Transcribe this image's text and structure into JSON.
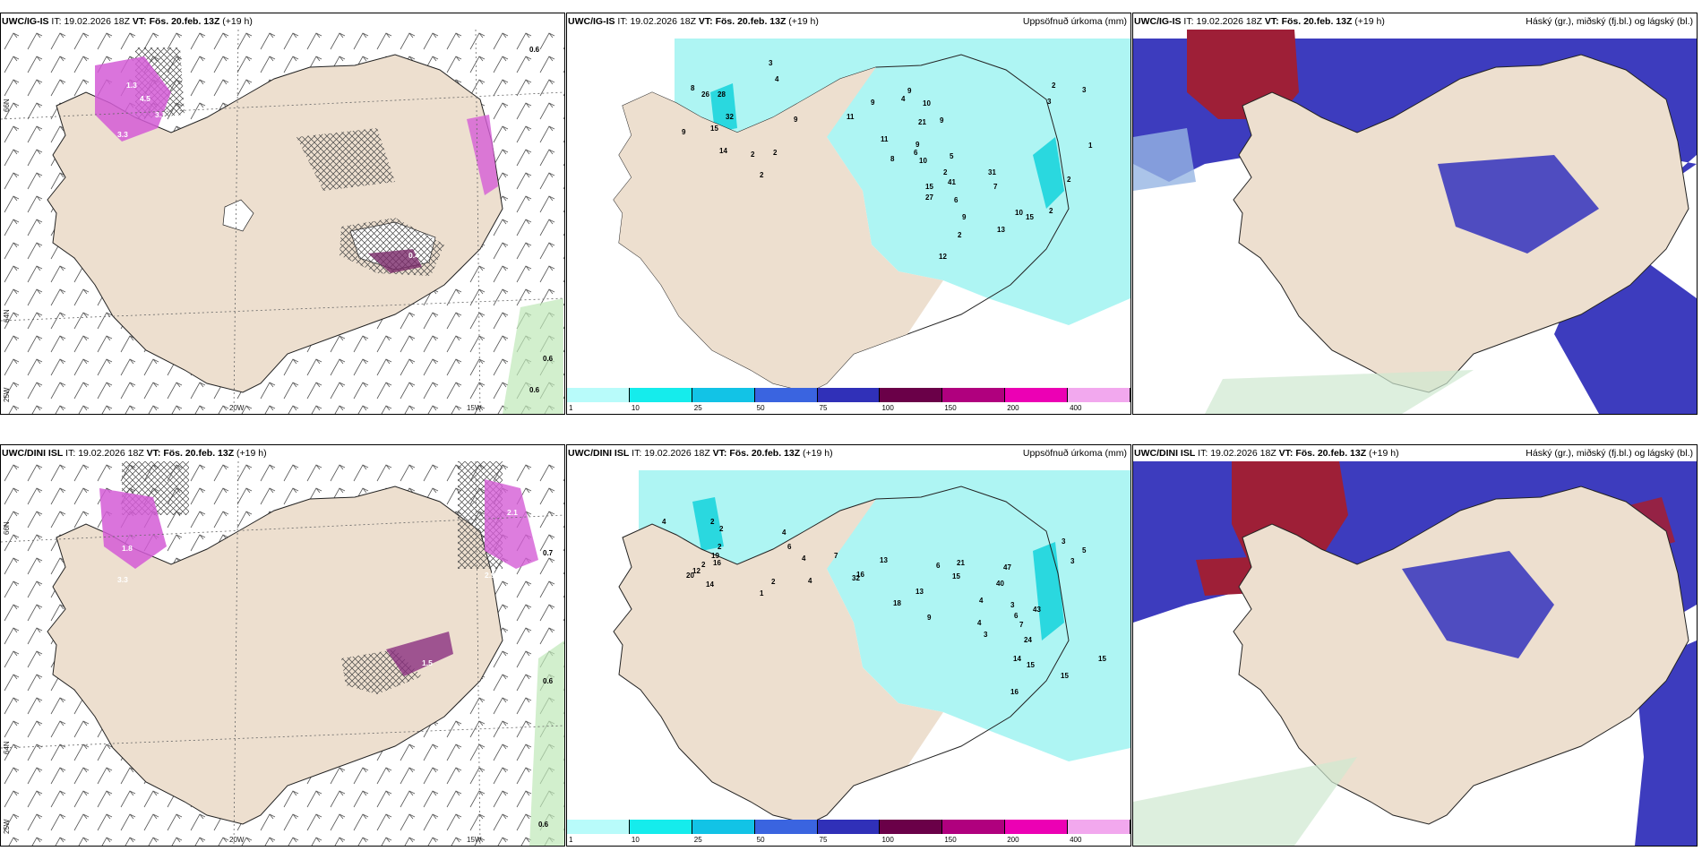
{
  "issue_label": "IT:",
  "issue_time": "19.02.2026 18Z",
  "valid_label": "VT:",
  "valid_time": "Fös. 20.feb. 13Z",
  "lead": "(+19 h)",
  "models": {
    "top": "UWC/IG-IS",
    "bottom": "UWC/DINI ISL"
  },
  "titles": {
    "precip": "Uppsöfnuð úrkoma (mm)",
    "clouds": "Háský (gr.), miðský (fj.bl.) og lágský (bl.)"
  },
  "axis": {
    "lat66": "66N",
    "lat64": "64N",
    "lon25": "25W",
    "lon20": "20W",
    "lon15": "15W"
  },
  "colorbar": {
    "ticks": [
      "1",
      "10",
      "25",
      "50",
      "75",
      "100",
      "150",
      "200",
      "400"
    ],
    "colors": [
      "#b8fbfa",
      "#15ecec",
      "#12c3e6",
      "#3a64e0",
      "#3030b8",
      "#6a0048",
      "#b0007e",
      "#ec00b4",
      "#f2a8ee"
    ]
  },
  "colors": {
    "land": "#eddfcf",
    "precip": "#aef5f3",
    "precip_hi": "#2ad8df",
    "hi_cloud": "#9e1f37",
    "mid_cloud": "#3d3cbe",
    "low_cloud": "#96b5e4",
    "snow": "#d45cd6"
  },
  "wind_values": {
    "top": [
      "1.3",
      "3.3",
      "4.5",
      "3.1",
      "0.6",
      "0.4",
      "0.6",
      "0.6"
    ],
    "bottom": [
      "0.6",
      "1.8",
      "3.3",
      "0.7",
      "2.9",
      "2.1",
      "1.5",
      "0.6"
    ]
  },
  "precip_values": {
    "top": [
      "3",
      "4",
      "8",
      "26",
      "28",
      "32",
      "15",
      "9",
      "14",
      "2",
      "2",
      "9",
      "2",
      "11",
      "11",
      "9",
      "9",
      "10",
      "21",
      "4",
      "9",
      "9",
      "6",
      "10",
      "15",
      "8",
      "2",
      "41",
      "5",
      "6",
      "31",
      "7",
      "27",
      "9",
      "2",
      "12",
      "10",
      "13",
      "15",
      "3",
      "2",
      "3",
      "1",
      "2",
      "2"
    ],
    "bottom": [
      "2",
      "2",
      "4",
      "2",
      "19",
      "16",
      "20",
      "2",
      "12",
      "14",
      "4",
      "6",
      "4",
      "2",
      "1",
      "4",
      "7",
      "16",
      "13",
      "32",
      "18",
      "13",
      "9",
      "6",
      "15",
      "21",
      "4",
      "4",
      "3",
      "3",
      "47",
      "40",
      "43",
      "6",
      "7",
      "3",
      "5",
      "24",
      "14",
      "15",
      "16",
      "15",
      "15",
      "3"
    ]
  }
}
